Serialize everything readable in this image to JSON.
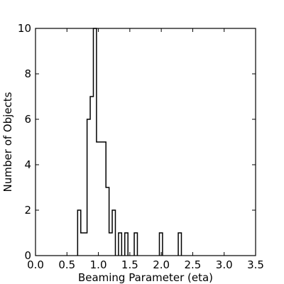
{
  "chart_data": {
    "type": "histogram",
    "title": "",
    "xlabel": "Beaming Parameter (eta)",
    "ylabel": "Number of Objects",
    "xlim": [
      0.0,
      3.5
    ],
    "ylim": [
      0,
      10
    ],
    "xticks": [
      "0.0",
      "0.5",
      "1.0",
      "1.5",
      "2.0",
      "2.5",
      "3.0",
      "3.5"
    ],
    "yticks": [
      "0",
      "2",
      "4",
      "6",
      "8",
      "10"
    ],
    "grid": false,
    "legend": false,
    "bin_width": 0.05,
    "bins": [
      {
        "x": 0.67,
        "count": 2
      },
      {
        "x": 0.72,
        "count": 1
      },
      {
        "x": 0.77,
        "count": 1
      },
      {
        "x": 0.82,
        "count": 6
      },
      {
        "x": 0.87,
        "count": 7
      },
      {
        "x": 0.92,
        "count": 10
      },
      {
        "x": 0.97,
        "count": 5
      },
      {
        "x": 1.02,
        "count": 5
      },
      {
        "x": 1.07,
        "count": 5
      },
      {
        "x": 1.12,
        "count": 3
      },
      {
        "x": 1.17,
        "count": 1
      },
      {
        "x": 1.22,
        "count": 2
      },
      {
        "x": 1.32,
        "count": 1
      },
      {
        "x": 1.42,
        "count": 1
      },
      {
        "x": 1.57,
        "count": 1
      },
      {
        "x": 1.97,
        "count": 1
      },
      {
        "x": 2.27,
        "count": 1
      }
    ]
  }
}
